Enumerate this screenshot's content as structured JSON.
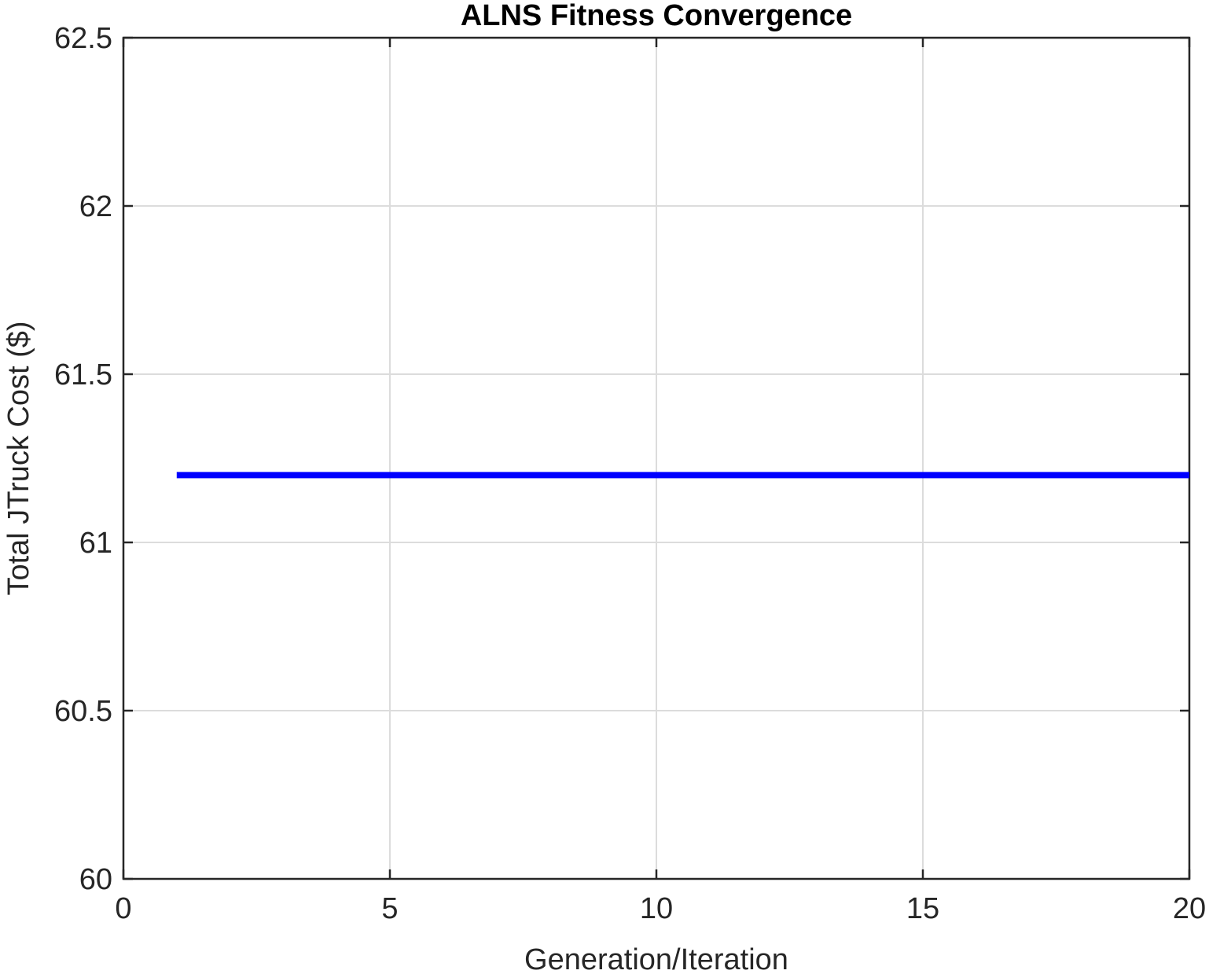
{
  "chart_data": {
    "type": "line",
    "title": "ALNS Fitness Convergence",
    "xlabel": "Generation/Iteration",
    "ylabel": "Total JTruck Cost ($)",
    "xlim": [
      0,
      20
    ],
    "ylim": [
      60,
      62.5
    ],
    "xticks": [
      0,
      5,
      10,
      15,
      20
    ],
    "xtick_labels": [
      "0",
      "5",
      "10",
      "15",
      "20"
    ],
    "yticks": [
      60,
      60.5,
      61,
      61.5,
      62,
      62.5
    ],
    "ytick_labels": [
      "60",
      "60.5",
      "61",
      "61.5",
      "62",
      "62.5"
    ],
    "grid": true,
    "legend": "none",
    "series": [
      {
        "color": "#0000ff",
        "x": [
          1,
          2,
          3,
          4,
          5,
          6,
          7,
          8,
          9,
          10,
          11,
          12,
          13,
          14,
          15,
          16,
          17,
          18,
          19,
          20
        ],
        "values": [
          61.2,
          61.2,
          61.2,
          61.2,
          61.2,
          61.2,
          61.2,
          61.2,
          61.2,
          61.2,
          61.2,
          61.2,
          61.2,
          61.2,
          61.2,
          61.2,
          61.2,
          61.2,
          61.2,
          61.2
        ]
      }
    ]
  }
}
